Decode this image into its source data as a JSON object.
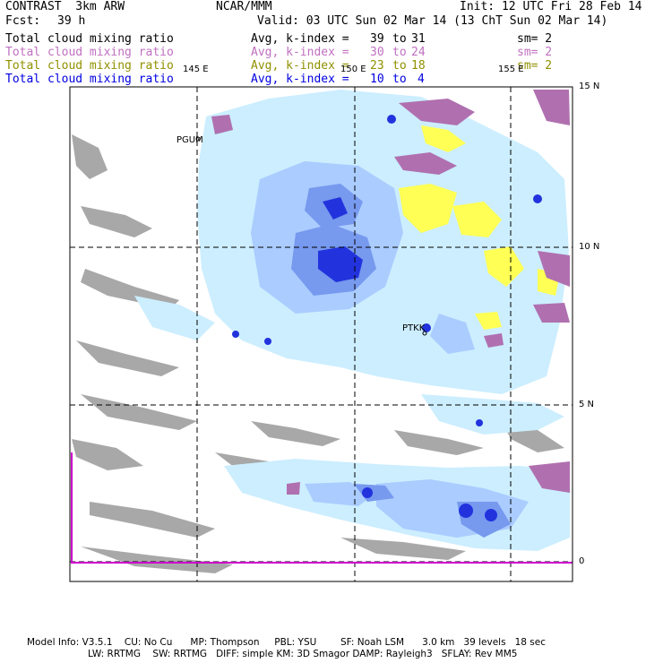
{
  "colors": {
    "black": "#000000",
    "pink": "#c070c0",
    "olive": "#909000",
    "blue": "#0000e0",
    "cloud_gray": "#a8a8a8",
    "cloud_magenta": "#b070b0",
    "cloud_yellow": "#ffff55",
    "light_cyan": "#cceeff",
    "light_blue": "#aaccff",
    "mid_blue": "#7799ee",
    "deep_blue": "#2233dd",
    "boundary_magenta": "#cc00cc"
  },
  "header": {
    "model": "CONTRAST  3km ARW",
    "org": "NCAR/MMM",
    "init": "Init: 12 UTC Fri 28 Feb 14",
    "fcst_label": "Fcst:",
    "fcst_value": "39 h",
    "valid": "Valid: 03 UTC Sun 02 Mar 14 (13 ChT Sun 02 Mar 14)"
  },
  "legend": [
    {
      "field": "Total cloud mixing ratio",
      "avg": "Avg, k-index =",
      "from": "39",
      "to_word": "to",
      "to": "31",
      "sm": "sm= 2",
      "color": "#000000"
    },
    {
      "field": "Total cloud mixing ratio",
      "avg": "Avg, k-index =",
      "from": "30",
      "to_word": "to",
      "to": "24",
      "sm": "sm= 2",
      "color": "#c070c0"
    },
    {
      "field": "Total cloud mixing ratio",
      "avg": "Avg, k-index =",
      "from": "23",
      "to_word": "to",
      "to": "18",
      "sm": "sm= 2",
      "color": "#909000"
    },
    {
      "field": "Total cloud mixing ratio",
      "avg": "Avg, k-index =",
      "from": "10",
      "to_word": "to",
      "to": "4",
      "sm": "",
      "color": "#0000e0"
    }
  ],
  "map": {
    "lon_labels": [
      "145 E",
      "150 E",
      "155 E"
    ],
    "lat_labels": [
      "15 N",
      "10 N",
      "5 N",
      "0"
    ],
    "stations": [
      {
        "id": "PGUM"
      },
      {
        "id": "PTKK"
      }
    ]
  },
  "footer": {
    "line1": "Model Info: V3.5.1    CU: No Cu      MP: Thompson     PBL: YSU        SF: Noah LSM      3.0 km   39 levels   18 sec",
    "line2": "LW: RRTMG    SW: RRTMG   DIFF: simple KM: 3D Smagor DAMP: Rayleigh3   SFLAY: Rev MM5"
  }
}
